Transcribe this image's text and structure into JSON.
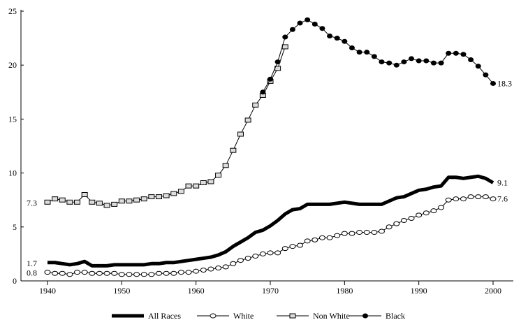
{
  "chart_data": {
    "type": "line",
    "title": "",
    "xlabel": "",
    "ylabel": "",
    "xlim": [
      1937,
      2003
    ],
    "ylim": [
      0,
      25
    ],
    "x_ticks": [
      1940,
      1950,
      1960,
      1970,
      1980,
      1990,
      2000
    ],
    "y_ticks": [
      0,
      5,
      10,
      15,
      20,
      25
    ],
    "legend_position": "bottom",
    "series": [
      {
        "name": "All Races",
        "marker": "none",
        "start_year": 1940,
        "values": [
          1.7,
          1.7,
          1.6,
          1.5,
          1.6,
          1.8,
          1.4,
          1.4,
          1.4,
          1.5,
          1.5,
          1.5,
          1.5,
          1.5,
          1.6,
          1.6,
          1.7,
          1.7,
          1.8,
          1.9,
          2.0,
          2.1,
          2.2,
          2.4,
          2.7,
          3.2,
          3.6,
          4.0,
          4.5,
          4.7,
          5.1,
          5.6,
          6.2,
          6.6,
          6.7,
          7.1,
          7.1,
          7.1,
          7.1,
          7.2,
          7.3,
          7.2,
          7.1,
          7.1,
          7.1,
          7.1,
          7.4,
          7.7,
          7.8,
          8.1,
          8.4,
          8.5,
          8.7,
          8.8,
          9.6,
          9.6,
          9.5,
          9.6,
          9.7,
          9.5,
          9.1
        ],
        "start_label": "1.7",
        "end_label": "9.1"
      },
      {
        "name": "White",
        "marker": "circle-open",
        "start_year": 1940,
        "values": [
          0.8,
          0.7,
          0.7,
          0.6,
          0.8,
          0.8,
          0.7,
          0.7,
          0.7,
          0.7,
          0.6,
          0.6,
          0.6,
          0.6,
          0.6,
          0.7,
          0.7,
          0.7,
          0.8,
          0.8,
          0.9,
          1.0,
          1.1,
          1.2,
          1.3,
          1.6,
          1.9,
          2.1,
          2.3,
          2.5,
          2.6,
          2.6,
          3.0,
          3.2,
          3.3,
          3.7,
          3.8,
          4.0,
          4.0,
          4.2,
          4.4,
          4.4,
          4.5,
          4.5,
          4.5,
          4.6,
          5.0,
          5.3,
          5.6,
          5.8,
          6.1,
          6.3,
          6.5,
          6.8,
          7.5,
          7.6,
          7.6,
          7.8,
          7.8,
          7.8,
          7.6
        ],
        "start_label": "0.8",
        "end_label": "7.6"
      },
      {
        "name": "Non White",
        "marker": "square-open",
        "start_year": 1940,
        "values": [
          7.3,
          7.6,
          7.5,
          7.3,
          7.3,
          8.0,
          7.3,
          7.2,
          7.0,
          7.1,
          7.4,
          7.4,
          7.5,
          7.6,
          7.8,
          7.8,
          7.9,
          8.1,
          8.3,
          8.8,
          8.8,
          9.1,
          9.2,
          9.8,
          10.7,
          12.1,
          13.6,
          14.9,
          16.3,
          17.2,
          18.5,
          19.7,
          21.7
        ],
        "start_label": "7.3"
      },
      {
        "name": "Black",
        "marker": "circle-filled",
        "start_year": 1969,
        "values": [
          17.5,
          18.7,
          20.3,
          22.6,
          23.3,
          23.9,
          24.2,
          23.8,
          23.4,
          22.7,
          22.5,
          22.2,
          21.6,
          21.2,
          21.2,
          20.8,
          20.3,
          20.2,
          20.0,
          20.3,
          20.6,
          20.4,
          20.4,
          20.2,
          20.2,
          21.1,
          21.1,
          21.0,
          20.5,
          19.9,
          19.1,
          18.3
        ],
        "end_label": "18.3"
      }
    ]
  }
}
